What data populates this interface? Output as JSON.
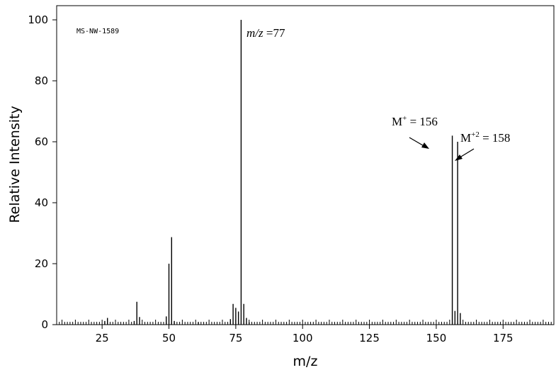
{
  "chart_data": {
    "type": "bar",
    "spectrum_id": "MS-NW-1589",
    "xlabel": "m/z",
    "ylabel": "Relative Intensity",
    "xlim": [
      8,
      194
    ],
    "ylim": [
      0,
      100
    ],
    "xticks": [
      25,
      50,
      75,
      100,
      125,
      150,
      175
    ],
    "yticks": [
      0,
      20,
      40,
      60,
      80,
      100
    ],
    "grid": false,
    "peaks": [
      {
        "mz": 26,
        "intensity": 1.2
      },
      {
        "mz": 27,
        "intensity": 2.2
      },
      {
        "mz": 37,
        "intensity": 1.2
      },
      {
        "mz": 38,
        "intensity": 7.5
      },
      {
        "mz": 39,
        "intensity": 2.5
      },
      {
        "mz": 49,
        "intensity": 2.7
      },
      {
        "mz": 50,
        "intensity": 20
      },
      {
        "mz": 51,
        "intensity": 28.7
      },
      {
        "mz": 52,
        "intensity": 1.2
      },
      {
        "mz": 61,
        "intensity": 0.8
      },
      {
        "mz": 73,
        "intensity": 1.8
      },
      {
        "mz": 74,
        "intensity": 6.8
      },
      {
        "mz": 75,
        "intensity": 5.5
      },
      {
        "mz": 76,
        "intensity": 4.3
      },
      {
        "mz": 77,
        "intensity": 100
      },
      {
        "mz": 78,
        "intensity": 6.8
      },
      {
        "mz": 79,
        "intensity": 2.2
      },
      {
        "mz": 80,
        "intensity": 0.8
      },
      {
        "mz": 156,
        "intensity": 62
      },
      {
        "mz": 157,
        "intensity": 4.5
      },
      {
        "mz": 158,
        "intensity": 60
      },
      {
        "mz": 159,
        "intensity": 3.8
      }
    ],
    "annotations": [
      {
        "id": "base",
        "prefix": "m/z",
        "text": " =77"
      },
      {
        "id": "m156",
        "base": "M",
        "sup": "+",
        "text": " = 156"
      },
      {
        "id": "m158",
        "base": "M",
        "sup": "+2",
        "text": " = 158"
      }
    ]
  }
}
